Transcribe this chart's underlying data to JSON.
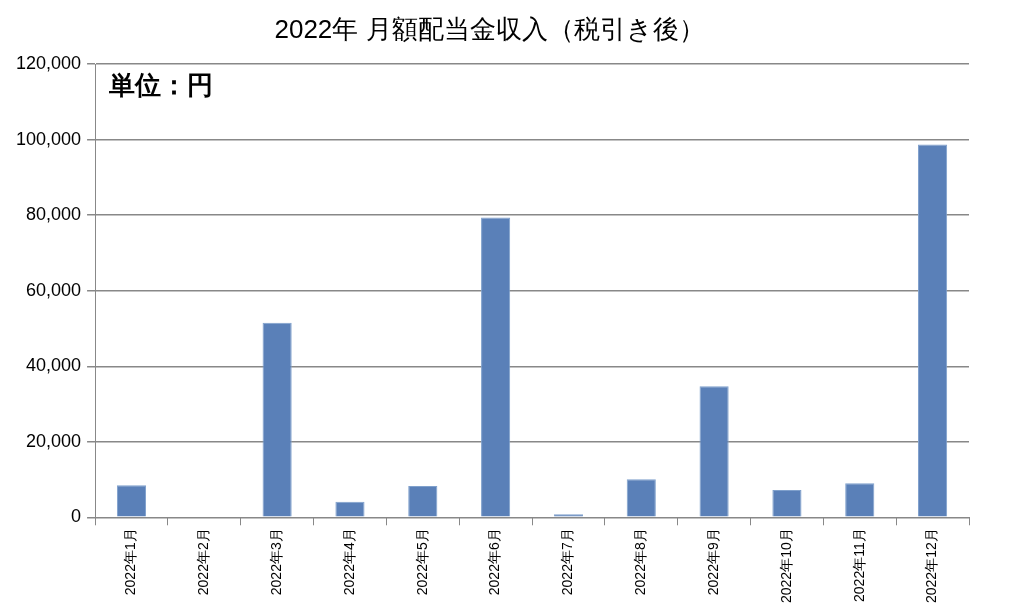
{
  "chart_data": {
    "type": "bar",
    "title": "2022年 月額配当金収入（税引き後）",
    "categories": [
      "2022年1月",
      "2022年2月",
      "2022年3月",
      "2022年4月",
      "2022年5月",
      "2022年6月",
      "2022年7月",
      "2022年8月",
      "2022年9月",
      "2022年10月",
      "2022年11月",
      "2022年12月"
    ],
    "values": [
      8500,
      0,
      51500,
      4100,
      8300,
      79400,
      800,
      10100,
      34700,
      7200,
      9000,
      98700
    ],
    "color": "#5a80b8",
    "ylim": [
      0,
      120000
    ],
    "yticks": [
      {
        "value": 0,
        "label": "0"
      },
      {
        "value": 20000,
        "label": "20,000"
      },
      {
        "value": 40000,
        "label": "40,000"
      },
      {
        "value": 60000,
        "label": "60,000"
      },
      {
        "value": 80000,
        "label": "80,000"
      },
      {
        "value": 100000,
        "label": "100,000"
      },
      {
        "value": 120000,
        "label": "120,000"
      }
    ],
    "grid": "y",
    "legend": false,
    "annotations": [
      "単位：円"
    ]
  }
}
